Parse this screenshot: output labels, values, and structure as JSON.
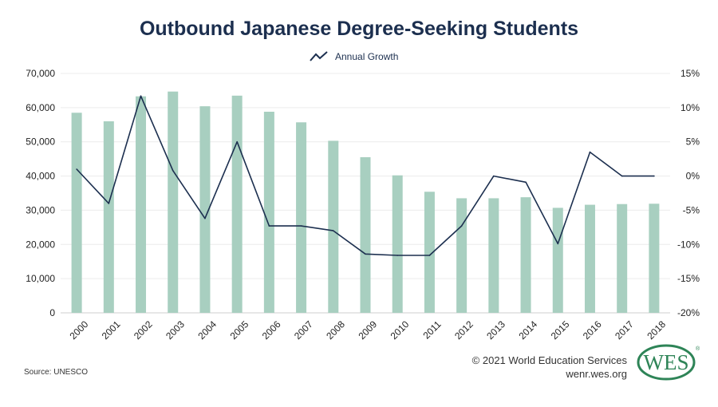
{
  "colors": {
    "bar": "#a8cfc0",
    "line": "#1c2f4f",
    "grid": "#ececec",
    "text": "#222222",
    "logo": "#2e8457"
  },
  "legend_label": "Annual Growth",
  "source": "Source: UNESCO",
  "copyright": "© 2021 World Education Services",
  "website": "wenr.wes.org",
  "logo_text": "WES",
  "chart_data": {
    "type": "bar",
    "title": "Outbound Japanese Degree-Seeking Students",
    "categories": [
      "2000",
      "2001",
      "2002",
      "2003",
      "2004",
      "2005",
      "2006",
      "2007",
      "2008",
      "2009",
      "2010",
      "2011",
      "2012",
      "2013",
      "2014",
      "2015",
      "2016",
      "2017",
      "2018"
    ],
    "series": [
      {
        "type": "bar",
        "axis": "left",
        "values": [
          58500,
          56000,
          63300,
          64700,
          60400,
          63500,
          58800,
          55700,
          50300,
          45500,
          40200,
          35400,
          33500,
          33500,
          33800,
          30700,
          31600,
          31800,
          31900
        ]
      },
      {
        "name": "Annual Growth",
        "type": "line",
        "axis": "right",
        "values": [
          1.0,
          -4.0,
          11.7,
          0.8,
          -6.2,
          5.0,
          -7.3,
          -7.3,
          -8.0,
          -11.4,
          -11.6,
          -11.6,
          -7.3,
          0.0,
          -0.9,
          -9.9,
          3.5,
          0.0,
          0.0
        ]
      }
    ],
    "y_left": {
      "lim": [
        0,
        70000
      ],
      "ticks": [
        "0",
        "10,000",
        "20,000",
        "30,000",
        "40,000",
        "50,000",
        "60,000",
        "70,000"
      ]
    },
    "y_right": {
      "lim": [
        -20,
        15
      ],
      "ticks": [
        "-20%",
        "-15%",
        "-10%",
        "-5%",
        "0%",
        "5%",
        "10%",
        "15%"
      ]
    },
    "grid": true,
    "legend_position": "top-center"
  }
}
